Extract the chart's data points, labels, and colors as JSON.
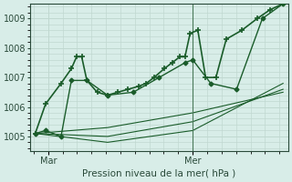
{
  "title": "",
  "xlabel": "Pression niveau de la mer( hPa )",
  "ylabel": "",
  "background_color": "#d8ede8",
  "grid_color": "#c0d8d0",
  "line_color": "#1a5c2a",
  "marker_color": "#1a5c2a",
  "ylim": [
    1004.5,
    1009.5
  ],
  "yticks": [
    1005,
    1006,
    1007,
    1008,
    1009
  ],
  "xtick_labels": [
    "Mar",
    "Mer"
  ],
  "xtick_positions": [
    0.07,
    0.63
  ],
  "vline_x": 0.63,
  "series": [
    [
      0.02,
      1005.1,
      0.06,
      1006.1,
      0.12,
      1006.8,
      0.16,
      1007.3,
      0.18,
      1007.7,
      0.2,
      1007.7,
      0.22,
      1006.9,
      0.26,
      1006.5,
      0.3,
      1006.4,
      0.34,
      1006.5,
      0.38,
      1006.6,
      0.42,
      1006.7,
      0.45,
      1006.8,
      0.48,
      1007.0,
      0.52,
      1007.3,
      0.55,
      1007.5,
      0.58,
      1007.7,
      0.6,
      1007.7,
      0.62,
      1008.5,
      0.65,
      1008.6,
      0.68,
      1007.0,
      0.72,
      1007.0,
      0.76,
      1008.3,
      0.82,
      1008.6,
      0.88,
      1009.0,
      0.93,
      1009.3,
      0.98,
      1009.5
    ],
    [
      0.02,
      1005.1,
      0.06,
      1005.2,
      0.12,
      1005.0,
      0.16,
      1006.9,
      0.22,
      1006.9,
      0.3,
      1006.4,
      0.4,
      1006.5,
      0.5,
      1007.0,
      0.6,
      1007.5,
      0.63,
      1007.6,
      0.7,
      1006.8,
      0.8,
      1006.6,
      0.9,
      1009.0,
      0.98,
      1009.5
    ],
    [
      0.02,
      1005.1,
      0.3,
      1005.3,
      0.63,
      1005.8,
      0.98,
      1006.5
    ],
    [
      0.02,
      1005.1,
      0.3,
      1005.0,
      0.63,
      1005.5,
      0.98,
      1006.6
    ],
    [
      0.02,
      1005.1,
      0.3,
      1004.8,
      0.63,
      1005.2,
      0.98,
      1006.8
    ]
  ]
}
